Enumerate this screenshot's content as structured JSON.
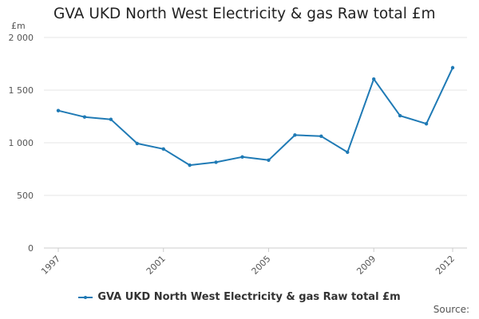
{
  "chart_data": {
    "type": "line",
    "title": "GVA UKD North West Electricity & gas Raw total £m",
    "ylabel": "£m",
    "xlabel": "",
    "x": [
      1997,
      1998,
      1999,
      2000,
      2001,
      2002,
      2003,
      2004,
      2005,
      2006,
      2007,
      2008,
      2009,
      2010,
      2011,
      2012
    ],
    "x_ticks": [
      "1997",
      "2001",
      "2005",
      "2009",
      "2012"
    ],
    "y_ticks": [
      "0",
      "500",
      "1 000",
      "1 500",
      "2 000"
    ],
    "ylim": [
      0,
      2000
    ],
    "grid": true,
    "legend_position": "bottom",
    "series": [
      {
        "name": "GVA UKD North West Electricity & gas Raw total £m",
        "values": [
          1305,
          1245,
          1222,
          993,
          941,
          787,
          815,
          865,
          835,
          1073,
          1062,
          910,
          1605,
          1257,
          1180,
          1713
        ]
      }
    ],
    "colors": {
      "series": "#1f7ab5",
      "grid": "#e6e6e6",
      "axis": "#cccccc"
    }
  },
  "source_label": "Source:"
}
